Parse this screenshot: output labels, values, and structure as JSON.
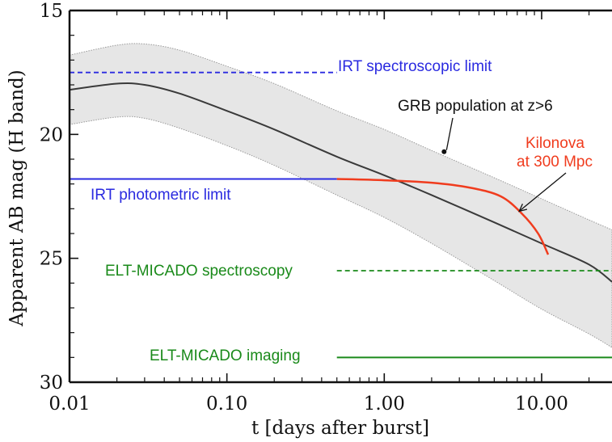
{
  "chart_data": {
    "type": "line",
    "xlabel": "t [days after burst]",
    "ylabel": "Apparent AB mag (H band)",
    "x_scale": "log",
    "xlim": [
      0.01,
      28
    ],
    "ylim": [
      30,
      15
    ],
    "y_inverted": true,
    "x_ticks": [
      0.01,
      0.1,
      1.0,
      10.0
    ],
    "x_tick_labels": [
      "0.01",
      "0.10",
      "1.00",
      "10.00"
    ],
    "y_ticks": [
      15,
      20,
      25,
      30
    ],
    "y_tick_labels": [
      "15",
      "20",
      "25",
      "30"
    ],
    "grid": false,
    "colors": {
      "band_fill": "#e6e6e6",
      "band_edge": "#9a9a9a",
      "grb_line": "#3a3a3a",
      "kilonova": "#f03c1e",
      "irt": "#2a2ae0",
      "elt": "#1a8a1a"
    },
    "series": [
      {
        "name": "GRB population at z>6",
        "kind": "median-line-with-band",
        "x": [
          0.01,
          0.02,
          0.03,
          0.05,
          0.1,
          0.2,
          0.5,
          1.0,
          2.0,
          5.0,
          10.0,
          20.0,
          28.0
        ],
        "y": [
          18.2,
          17.95,
          18.0,
          18.35,
          19.05,
          19.8,
          20.9,
          21.65,
          22.45,
          23.55,
          24.4,
          25.25,
          25.95
        ],
        "band_upper": [
          16.8,
          16.4,
          16.35,
          16.6,
          17.25,
          17.95,
          19.05,
          19.8,
          20.65,
          21.75,
          22.6,
          23.45,
          23.85
        ],
        "band_lower": [
          19.6,
          19.3,
          19.35,
          19.75,
          20.45,
          21.25,
          22.45,
          23.35,
          24.4,
          25.9,
          27.05,
          28.05,
          28.6
        ]
      },
      {
        "name": "Kilonova at 300 Mpc",
        "x": [
          0.5,
          1.0,
          2.0,
          3.5,
          5.5,
          7.5,
          9.5,
          11.0
        ],
        "y": [
          21.8,
          21.85,
          21.95,
          22.15,
          22.5,
          23.2,
          24.0,
          24.85
        ]
      }
    ],
    "limits": [
      {
        "label": "IRT spectroscopic limit",
        "y": 17.5,
        "x_range": [
          0.01,
          0.5
        ],
        "style": "dashed",
        "color": "#2a2ae0"
      },
      {
        "label": "IRT photometric limit",
        "y": 21.8,
        "x_range": [
          0.01,
          0.5
        ],
        "style": "solid",
        "color": "#2a2ae0"
      },
      {
        "label": "ELT-MICADO spectroscopy",
        "y": 25.5,
        "x_range": [
          0.5,
          28
        ],
        "style": "dashed",
        "color": "#1a8a1a"
      },
      {
        "label": "ELT-MICADO imaging",
        "y": 29.0,
        "x_range": [
          0.5,
          28
        ],
        "style": "solid",
        "color": "#1a8a1a"
      }
    ],
    "annotations": [
      {
        "text": "GRB population at z>6",
        "color": "#111111",
        "point": [
          2.4,
          20.7
        ]
      },
      {
        "text_lines": [
          "Kilonova",
          "at 300 Mpc"
        ],
        "color": "#f03c1e",
        "point": [
          7.2,
          23.1
        ]
      }
    ]
  }
}
